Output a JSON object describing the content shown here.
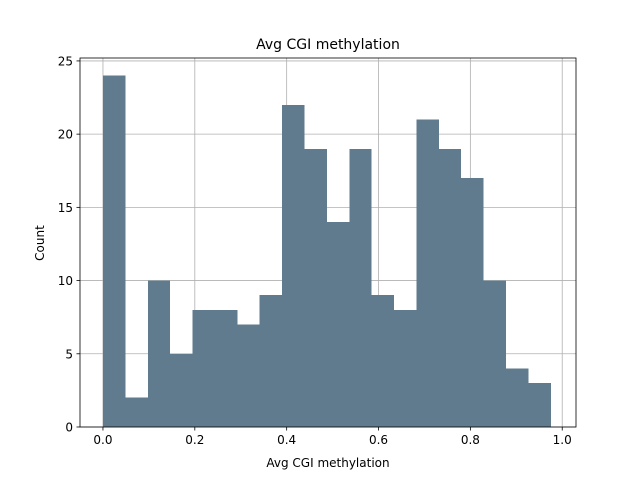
{
  "chart_data": {
    "type": "bar",
    "title": "Avg CGI methylation",
    "xlabel": "Avg CGI methylation",
    "ylabel": "Count",
    "xlim": [
      -0.05,
      1.03
    ],
    "ylim": [
      0,
      25.2
    ],
    "grid": true,
    "bar_color": "#607b8d",
    "bins": [
      {
        "x0": 0.0,
        "x1": 0.049,
        "count": 24
      },
      {
        "x0": 0.049,
        "x1": 0.098,
        "count": 2
      },
      {
        "x0": 0.098,
        "x1": 0.146,
        "count": 10
      },
      {
        "x0": 0.146,
        "x1": 0.195,
        "count": 5
      },
      {
        "x0": 0.195,
        "x1": 0.244,
        "count": 8
      },
      {
        "x0": 0.244,
        "x1": 0.293,
        "count": 8
      },
      {
        "x0": 0.293,
        "x1": 0.341,
        "count": 7
      },
      {
        "x0": 0.341,
        "x1": 0.39,
        "count": 9
      },
      {
        "x0": 0.39,
        "x1": 0.439,
        "count": 22
      },
      {
        "x0": 0.439,
        "x1": 0.488,
        "count": 19
      },
      {
        "x0": 0.488,
        "x1": 0.537,
        "count": 14
      },
      {
        "x0": 0.537,
        "x1": 0.585,
        "count": 19
      },
      {
        "x0": 0.585,
        "x1": 0.634,
        "count": 9
      },
      {
        "x0": 0.634,
        "x1": 0.683,
        "count": 8
      },
      {
        "x0": 0.683,
        "x1": 0.732,
        "count": 21
      },
      {
        "x0": 0.732,
        "x1": 0.78,
        "count": 19
      },
      {
        "x0": 0.78,
        "x1": 0.829,
        "count": 17
      },
      {
        "x0": 0.829,
        "x1": 0.878,
        "count": 10
      },
      {
        "x0": 0.878,
        "x1": 0.927,
        "count": 4
      },
      {
        "x0": 0.927,
        "x1": 0.976,
        "count": 3
      }
    ],
    "x_ticks": [
      {
        "value": 0.0,
        "label": "0.0"
      },
      {
        "value": 0.2,
        "label": "0.2"
      },
      {
        "value": 0.4,
        "label": "0.4"
      },
      {
        "value": 0.6,
        "label": "0.6"
      },
      {
        "value": 0.8,
        "label": "0.8"
      },
      {
        "value": 1.0,
        "label": "1.0"
      }
    ],
    "y_ticks": [
      {
        "value": 0,
        "label": "0"
      },
      {
        "value": 5,
        "label": "5"
      },
      {
        "value": 10,
        "label": "10"
      },
      {
        "value": 15,
        "label": "15"
      },
      {
        "value": 20,
        "label": "20"
      },
      {
        "value": 25,
        "label": "25"
      }
    ]
  }
}
